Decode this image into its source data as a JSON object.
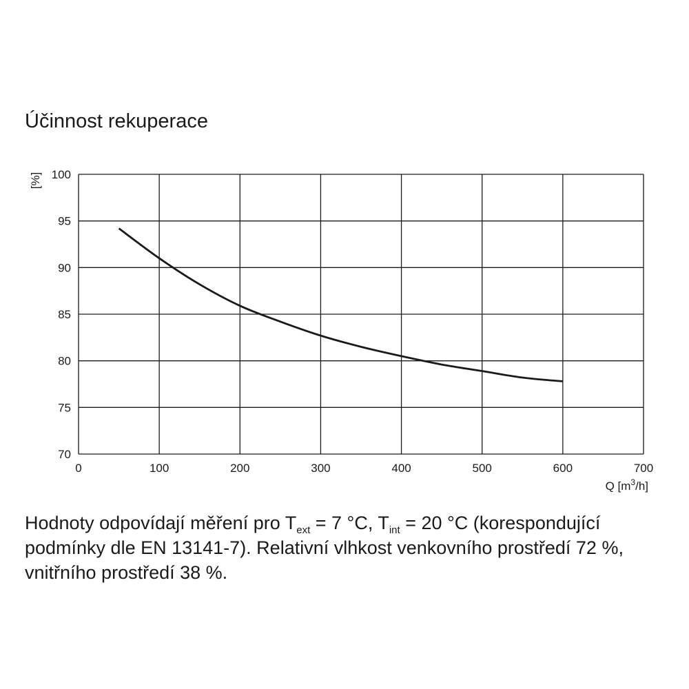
{
  "chart_data": {
    "type": "line",
    "title": "Účinnost rekuperace",
    "ylabel": "[%]",
    "xlabel_main": "Q [m",
    "xlabel_sup": "3",
    "xlabel_end": "/h]",
    "xlim": [
      0,
      700
    ],
    "ylim": [
      70,
      100
    ],
    "xticks": [
      0,
      100,
      200,
      300,
      400,
      500,
      600,
      700
    ],
    "yticks": [
      70,
      75,
      80,
      85,
      90,
      95,
      100
    ],
    "grid": true,
    "series": [
      {
        "x": [
          50,
          100,
          150,
          200,
          250,
          300,
          350,
          400,
          450,
          500,
          550,
          600
        ],
        "values": [
          94.2,
          91.0,
          88.2,
          85.9,
          84.2,
          82.7,
          81.5,
          80.5,
          79.6,
          78.9,
          78.2,
          77.8
        ]
      }
    ]
  },
  "note": {
    "part1": "Hodnoty odpovídají měření pro T",
    "sub1": "ext",
    "part2": " = 7 °C, T",
    "sub2": "int",
    "part3": " = 20 °C (korespondující podmínky dle EN 13141-7). Relativní vlhkost venkovního prostředí 72 %, vnitřního prostředí 38 %."
  },
  "colors": {
    "line": "#1a1a1a",
    "grid": "#1a1a1a"
  }
}
